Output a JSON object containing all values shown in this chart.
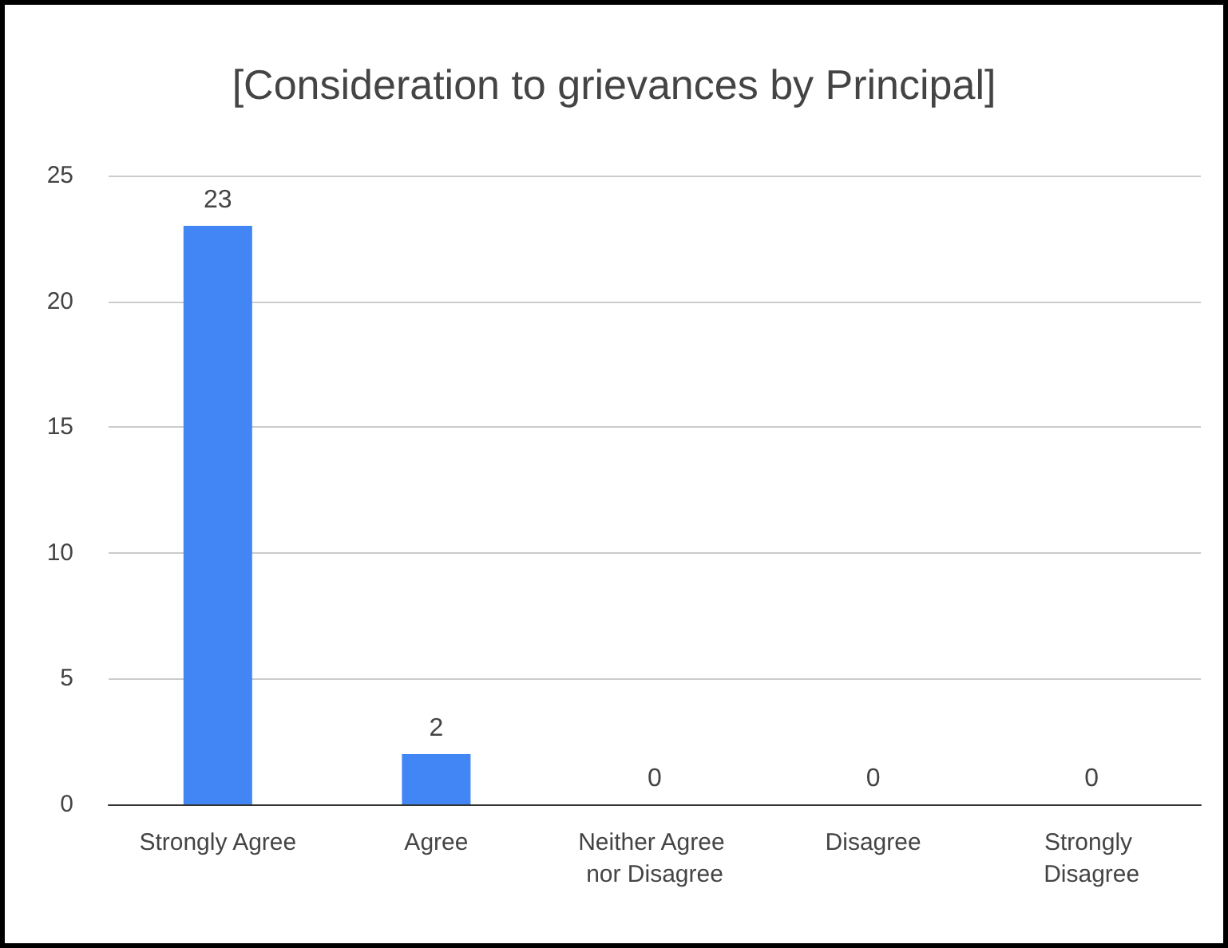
{
  "chart_data": {
    "type": "bar",
    "title": "[Consideration to grievances by Principal]",
    "categories": [
      "Strongly Agree",
      "Agree",
      "Neither Agree nor Disagree",
      "Disagree",
      "Strongly Disagree"
    ],
    "values": [
      23,
      2,
      0,
      0,
      0
    ],
    "color": "#4285f4",
    "ylim": [
      0,
      25
    ],
    "yticks": [
      0,
      5,
      10,
      15,
      20,
      25
    ],
    "grid": "y",
    "data_labels": true
  }
}
